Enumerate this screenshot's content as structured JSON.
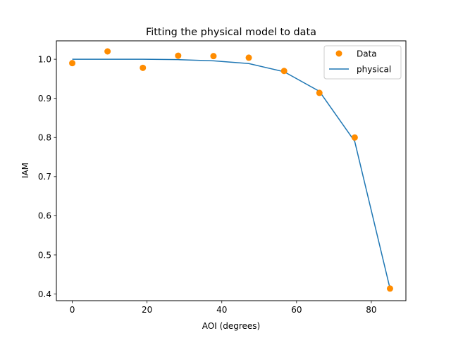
{
  "chart_data": {
    "type": "line",
    "title": "Fitting the physical model to data",
    "xlabel": "AOI (degrees)",
    "ylabel": "IAM",
    "xlim": [
      -4.25,
      89.25
    ],
    "ylim": [
      0.383,
      1.047
    ],
    "xticks": [
      0,
      20,
      40,
      60,
      80
    ],
    "yticks": [
      0.4,
      0.5,
      0.6,
      0.7,
      0.8,
      0.9,
      1.0
    ],
    "xtick_labels": [
      "0",
      "20",
      "40",
      "60",
      "80"
    ],
    "ytick_labels": [
      "0.4",
      "0.5",
      "0.6",
      "0.7",
      "0.8",
      "0.9",
      "1.0"
    ],
    "grid": false,
    "legend_position": "top-right",
    "series": [
      {
        "name": "Data",
        "kind": "scatter",
        "color": "#ff8c00",
        "x": [
          0,
          9.44,
          18.89,
          28.33,
          37.78,
          47.22,
          56.67,
          66.11,
          75.56,
          85.0
        ],
        "y": [
          0.99,
          1.02,
          0.978,
          1.009,
          1.008,
          1.004,
          0.97,
          0.914,
          0.8,
          0.414
        ]
      },
      {
        "name": "physical",
        "kind": "line",
        "color": "#1f77b4",
        "x": [
          0,
          9.44,
          18.89,
          28.33,
          37.78,
          47.22,
          56.67,
          66.11,
          75.56,
          85.0
        ],
        "y": [
          1.0,
          1.0,
          1.0,
          0.999,
          0.996,
          0.989,
          0.968,
          0.918,
          0.79,
          0.414
        ]
      }
    ]
  }
}
